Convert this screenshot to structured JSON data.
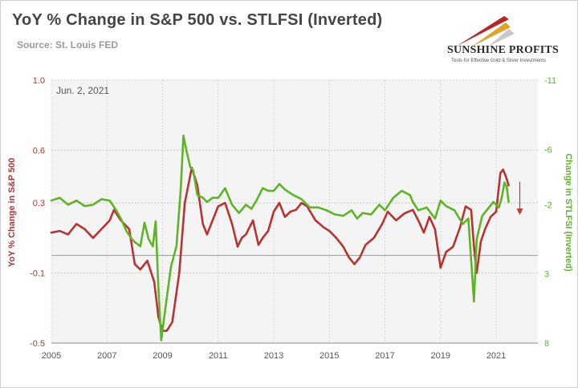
{
  "header": {
    "title": "YoY % Change in S&P 500 vs. STLFSI (Inverted)",
    "source": "Source: St. Louis FED"
  },
  "logo": {
    "name": "SUNSHINE PROFITS",
    "tagline": "Tools for Effective Gold & Silver Investments",
    "colors": [
      "#b5262b",
      "#e0a526",
      "#c9c9c9"
    ]
  },
  "chart_data": {
    "type": "line",
    "date_label": "Jun. 2, 2021",
    "xlabel": "",
    "x_ticks": [
      "2005",
      "2007",
      "2009",
      "2011",
      "2013",
      "2015",
      "2017",
      "2019",
      "2021"
    ],
    "xlim": [
      2005.0,
      2022.5
    ],
    "left_axis": {
      "label": "YoY % Change in S&P 500",
      "ylim": [
        -0.5,
        1.0
      ],
      "tick_labels": [
        "1.0",
        "0.6",
        "0.3",
        "-0.1",
        "-0.5"
      ],
      "tick_values": [
        1.0,
        0.6,
        0.3,
        -0.1,
        -0.5
      ],
      "color": "#b83232"
    },
    "right_axis": {
      "label": "Change in STLFSI (Inverted)",
      "ylim": [
        -11,
        8
      ],
      "inverted": true,
      "tick_labels": [
        "-11",
        "-6",
        "-2",
        "3",
        "8"
      ],
      "tick_values": [
        -11,
        -6,
        -2,
        3,
        8
      ],
      "color": "#5db526"
    },
    "grid": true,
    "series": [
      {
        "name": "YoY % Change in S&P 500",
        "axis": "left",
        "color": "#b83232",
        "x": [
          2005.0,
          2005.3,
          2005.6,
          2005.9,
          2006.2,
          2006.5,
          2006.8,
          2007.1,
          2007.25,
          2007.5,
          2007.8,
          2008.0,
          2008.2,
          2008.45,
          2008.7,
          2008.85,
          2009.0,
          2009.15,
          2009.35,
          2009.6,
          2009.8,
          2010.05,
          2010.25,
          2010.45,
          2010.6,
          2010.8,
          2011.0,
          2011.25,
          2011.5,
          2011.7,
          2011.85,
          2012.0,
          2012.25,
          2012.45,
          2012.6,
          2012.8,
          2013.0,
          2013.2,
          2013.4,
          2013.6,
          2013.8,
          2014.0,
          2014.2,
          2014.5,
          2014.8,
          2015.0,
          2015.25,
          2015.5,
          2015.7,
          2015.9,
          2016.1,
          2016.3,
          2016.6,
          2016.9,
          2017.1,
          2017.4,
          2017.7,
          2018.0,
          2018.2,
          2018.4,
          2018.6,
          2018.8,
          2019.0,
          2019.2,
          2019.45,
          2019.7,
          2019.9,
          2020.1,
          2020.2,
          2020.3,
          2020.45,
          2020.6,
          2020.8,
          2021.0,
          2021.15,
          2021.25,
          2021.35,
          2021.45
        ],
        "y": [
          0.13,
          0.14,
          0.12,
          0.18,
          0.15,
          0.1,
          0.15,
          0.2,
          0.26,
          0.2,
          0.15,
          -0.05,
          -0.08,
          -0.03,
          -0.15,
          -0.35,
          -0.43,
          -0.43,
          -0.38,
          -0.1,
          0.3,
          0.5,
          0.4,
          0.18,
          0.12,
          0.2,
          0.28,
          0.3,
          0.18,
          0.05,
          0.1,
          0.12,
          0.2,
          0.06,
          0.1,
          0.14,
          0.25,
          0.3,
          0.22,
          0.25,
          0.26,
          0.3,
          0.28,
          0.2,
          0.16,
          0.14,
          0.1,
          0.05,
          -0.01,
          -0.05,
          -0.01,
          0.06,
          0.1,
          0.18,
          0.25,
          0.2,
          0.24,
          0.26,
          0.2,
          0.13,
          0.22,
          0.15,
          -0.07,
          0.02,
          0.05,
          0.16,
          0.28,
          0.26,
          0.05,
          -0.1,
          0.08,
          0.15,
          0.22,
          0.25,
          0.47,
          0.49,
          0.45,
          0.4
        ]
      },
      {
        "name": "Change in STLFSI (Inverted)",
        "axis": "right",
        "color": "#5db526",
        "x": [
          2005.0,
          2005.3,
          2005.6,
          2005.9,
          2006.2,
          2006.5,
          2006.8,
          2007.1,
          2007.3,
          2007.5,
          2007.7,
          2007.9,
          2008.0,
          2008.2,
          2008.35,
          2008.5,
          2008.65,
          2008.75,
          2008.85,
          2008.95,
          2009.1,
          2009.3,
          2009.5,
          2009.65,
          2009.75,
          2009.85,
          2010.0,
          2010.1,
          2010.25,
          2010.45,
          2010.6,
          2010.8,
          2011.0,
          2011.25,
          2011.5,
          2011.75,
          2012.0,
          2012.2,
          2012.4,
          2012.6,
          2012.8,
          2013.0,
          2013.2,
          2013.4,
          2013.7,
          2014.0,
          2014.3,
          2014.6,
          2014.9,
          2015.2,
          2015.5,
          2015.8,
          2016.0,
          2016.2,
          2016.5,
          2016.8,
          2017.0,
          2017.3,
          2017.6,
          2017.9,
          2018.0,
          2018.2,
          2018.5,
          2018.8,
          2019.0,
          2019.2,
          2019.5,
          2019.8,
          2020.0,
          2020.1,
          2020.2,
          2020.3,
          2020.5,
          2020.7,
          2020.9,
          2021.0,
          2021.1,
          2021.2,
          2021.3,
          2021.38,
          2021.45
        ],
        "y": [
          -2.3,
          -2.5,
          -2.0,
          -2.3,
          -1.9,
          -2.0,
          -2.4,
          -2.3,
          -1.7,
          -1.0,
          -0.1,
          0.5,
          0.7,
          1.0,
          -0.7,
          0.5,
          1.0,
          -0.8,
          4.0,
          7.8,
          5.5,
          2.5,
          1.0,
          -3.0,
          -7.0,
          -6.0,
          -4.7,
          -4.5,
          -2.7,
          -2.5,
          -2.2,
          -2.5,
          -2.5,
          -3.2,
          -2.0,
          -1.4,
          -2.0,
          -1.7,
          -2.4,
          -3.2,
          -3.0,
          -3.0,
          -3.5,
          -3.1,
          -2.7,
          -2.4,
          -1.8,
          -1.8,
          -1.6,
          -1.3,
          -1.2,
          -1.6,
          -1.0,
          -1.4,
          -1.3,
          -2.0,
          -1.6,
          -2.5,
          -3.0,
          -2.7,
          -2.2,
          -1.6,
          -1.8,
          -1.0,
          -2.3,
          -1.9,
          -1.6,
          -0.6,
          -1.0,
          2.0,
          5.0,
          0.5,
          -1.2,
          -1.7,
          -2.2,
          -2.0,
          -1.8,
          -2.5,
          -3.6,
          -3.3,
          -2.2
        ]
      }
    ],
    "annotation": {
      "type": "down-arrow",
      "color": "#c23a32",
      "x": 2021.85,
      "y_from": 0.42,
      "y_to": 0.24
    }
  }
}
